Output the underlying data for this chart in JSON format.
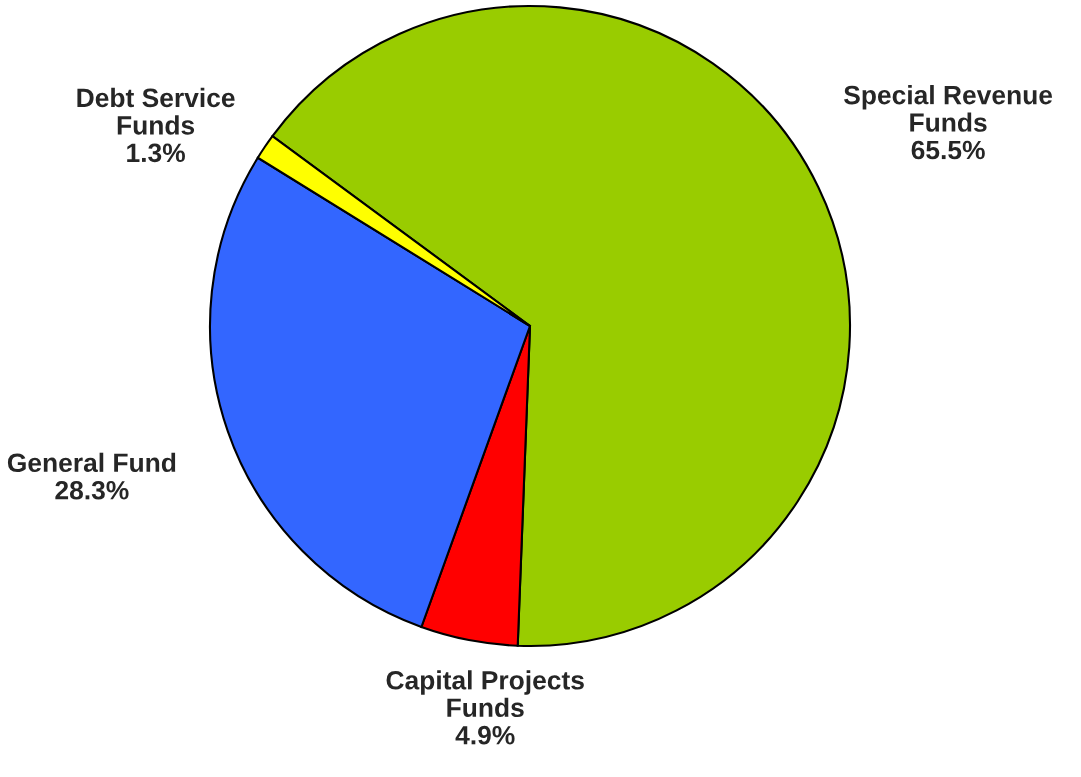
{
  "chart_data": {
    "type": "pie",
    "categories": [
      "Special Revenue\nFunds",
      "Capital Projects\nFunds",
      "General Fund",
      "Debt Service\nFunds"
    ],
    "values": [
      65.5,
      4.9,
      28.3,
      1.3
    ],
    "value_labels": [
      "65.5%",
      "4.9%",
      "28.3%",
      "1.3%"
    ],
    "colors": [
      "#99cc00",
      "#ff0000",
      "#3366ff",
      "#ffff00"
    ],
    "legend": false
  }
}
